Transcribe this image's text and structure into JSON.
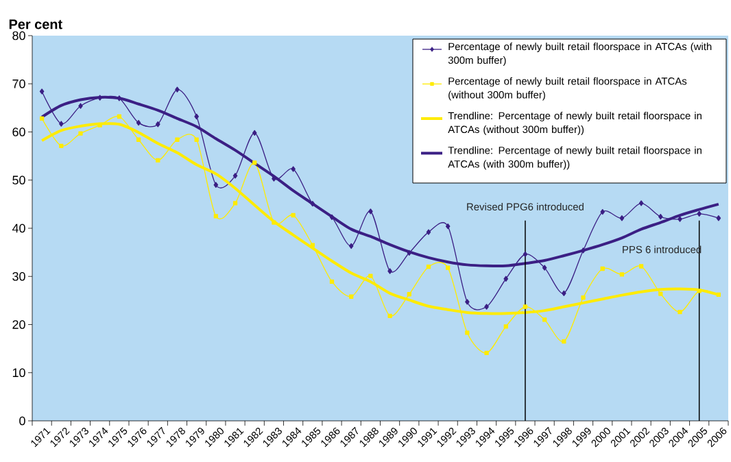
{
  "chart_data": {
    "type": "line",
    "ylabel": "Per cent",
    "categories": [
      "1971",
      "1972",
      "1973",
      "1974",
      "1975",
      "1976",
      "1977",
      "1978",
      "1979",
      "1980",
      "1981",
      "1982",
      "1983",
      "1984",
      "1985",
      "1986",
      "1987",
      "1988",
      "1989",
      "1990",
      "1991",
      "1992",
      "1993",
      "1994",
      "1995",
      "1996",
      "1997",
      "1998",
      "1999",
      "2000",
      "2001",
      "2002",
      "2003",
      "2004",
      "2005",
      "2006"
    ],
    "ylim": [
      0,
      80
    ],
    "yticks": [
      0,
      10,
      20,
      30,
      40,
      50,
      60,
      70,
      80
    ],
    "legend": "top right",
    "series": [
      {
        "name": "Percentage of newly built retail floorspace in ATCAs (with 300m buffer)",
        "marker": "diamond",
        "color": "#3b1f84",
        "values": [
          68.4,
          61.7,
          65.4,
          67.1,
          67.0,
          61.9,
          61.6,
          68.8,
          63.2,
          49.0,
          50.9,
          59.8,
          50.3,
          52.3,
          45.1,
          42.3,
          36.3,
          43.5,
          31.1,
          34.9,
          39.2,
          40.4,
          24.7,
          23.7,
          29.5,
          34.6,
          31.8,
          26.5,
          35.4,
          43.4,
          42.1,
          45.2,
          42.4,
          41.9,
          43.0,
          42.1
        ]
      },
      {
        "name": "Percentage of newly built retail floorspace in ATCAs (without 300m buffer)",
        "marker": "square",
        "color": "#ffeb00",
        "values": [
          62.8,
          57.1,
          59.7,
          61.4,
          63.2,
          58.4,
          54.1,
          58.4,
          58.4,
          42.5,
          45.2,
          53.6,
          41.2,
          42.7,
          36.5,
          28.9,
          25.8,
          30.1,
          21.8,
          26.3,
          32.0,
          31.8,
          18.3,
          14.1,
          19.6,
          23.7,
          21.0,
          16.5,
          25.6,
          31.6,
          30.4,
          32.1,
          26.4,
          22.6,
          27.0,
          26.2
        ]
      },
      {
        "name": "Trendline: Percentage of newly built retail floorspace in ATCAs (without 300m buffer))",
        "marker": "none",
        "color": "#ffeb00",
        "values": [
          58.2,
          60.3,
          61.2,
          61.7,
          61.6,
          59.9,
          57.6,
          55.7,
          53.2,
          51.3,
          48.3,
          44.8,
          41.4,
          38.6,
          35.9,
          33.2,
          30.7,
          28.9,
          26.5,
          25.1,
          23.8,
          23.1,
          22.5,
          22.3,
          22.3,
          22.5,
          22.9,
          23.7,
          24.5,
          25.3,
          26.1,
          26.8,
          27.3,
          27.4,
          27.2,
          26.2
        ]
      },
      {
        "name": "Trendline: Percentage of newly built retail floorspace in ATCAs (with 300m buffer))",
        "marker": "none",
        "color": "#3b1f84",
        "values": [
          63.1,
          65.5,
          66.7,
          67.2,
          67.0,
          65.8,
          64.5,
          62.8,
          61.1,
          58.6,
          56.2,
          53.5,
          50.8,
          47.8,
          45.1,
          42.4,
          39.8,
          38.3,
          36.6,
          35.1,
          33.9,
          33.0,
          32.4,
          32.2,
          32.2,
          32.7,
          33.3,
          34.3,
          35.4,
          36.6,
          38.0,
          39.8,
          41.2,
          42.7,
          43.9,
          45.0
        ]
      }
    ],
    "ref_lines": [
      {
        "axis": "x",
        "value": "1996",
        "label": "Revised PPG6 introduced",
        "color": "#000000"
      },
      {
        "axis": "x",
        "value": "2005",
        "label": "PPS 6 introduced",
        "color": "#000000"
      }
    ]
  }
}
